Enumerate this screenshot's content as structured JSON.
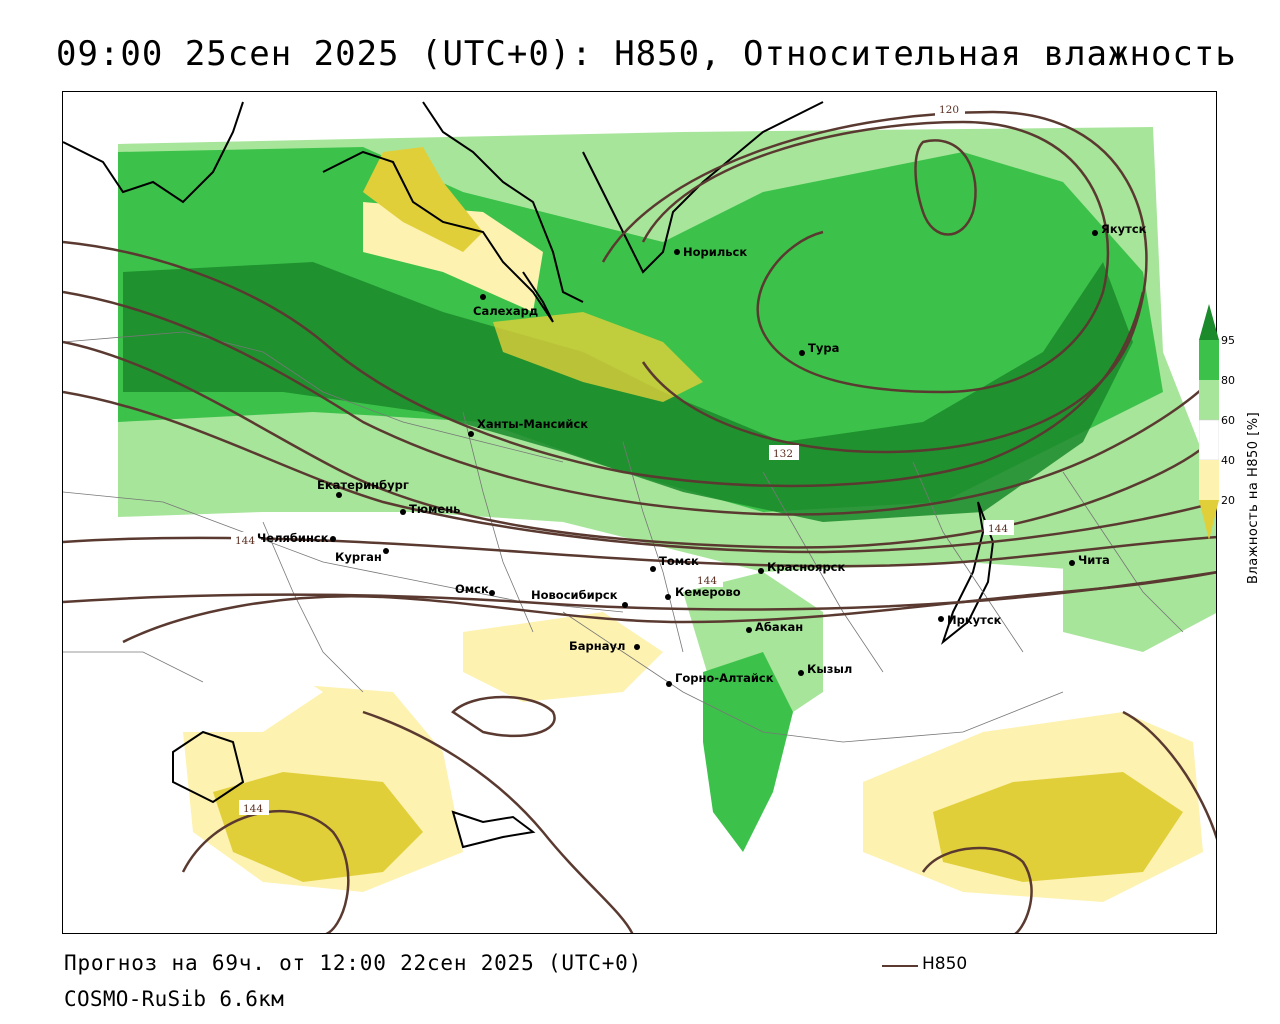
{
  "title": "09:00 25сен 2025 (UTC+0): H850, Относительная влажность",
  "footer": {
    "forecast": "Прогноз на 69ч. от 12:00 22сен 2025 (UTC+0)",
    "model": "COSMO-RuSib 6.6км"
  },
  "legend": {
    "contour_label": "H850",
    "contour_color": "#5a3a30"
  },
  "colorbar": {
    "title": "Влажность на H850 [%]",
    "ticks": [
      "95",
      "80",
      "60",
      "40",
      "20"
    ],
    "colors": [
      "#1a8a2a",
      "#3cc24a",
      "#a7e59a",
      "#ffffff",
      "#fdf2b0",
      "#e1cf3a"
    ]
  },
  "isolines": [
    "120",
    "132",
    "144",
    "144",
    "144",
    "144"
  ],
  "cities": [
    "Норильск",
    "Якутск",
    "Салехард",
    "Тура",
    "Ханты-Мансийск",
    "Екатеринбург",
    "Тюмень",
    "Челябинск",
    "Курган",
    "Омск",
    "Новосибирск",
    "Томск",
    "Кемерово",
    "Красноярск",
    "Абакан",
    "Барнаул",
    "Горно-Алтайск",
    "Кызыл",
    "Иркутск",
    "Чита"
  ]
}
